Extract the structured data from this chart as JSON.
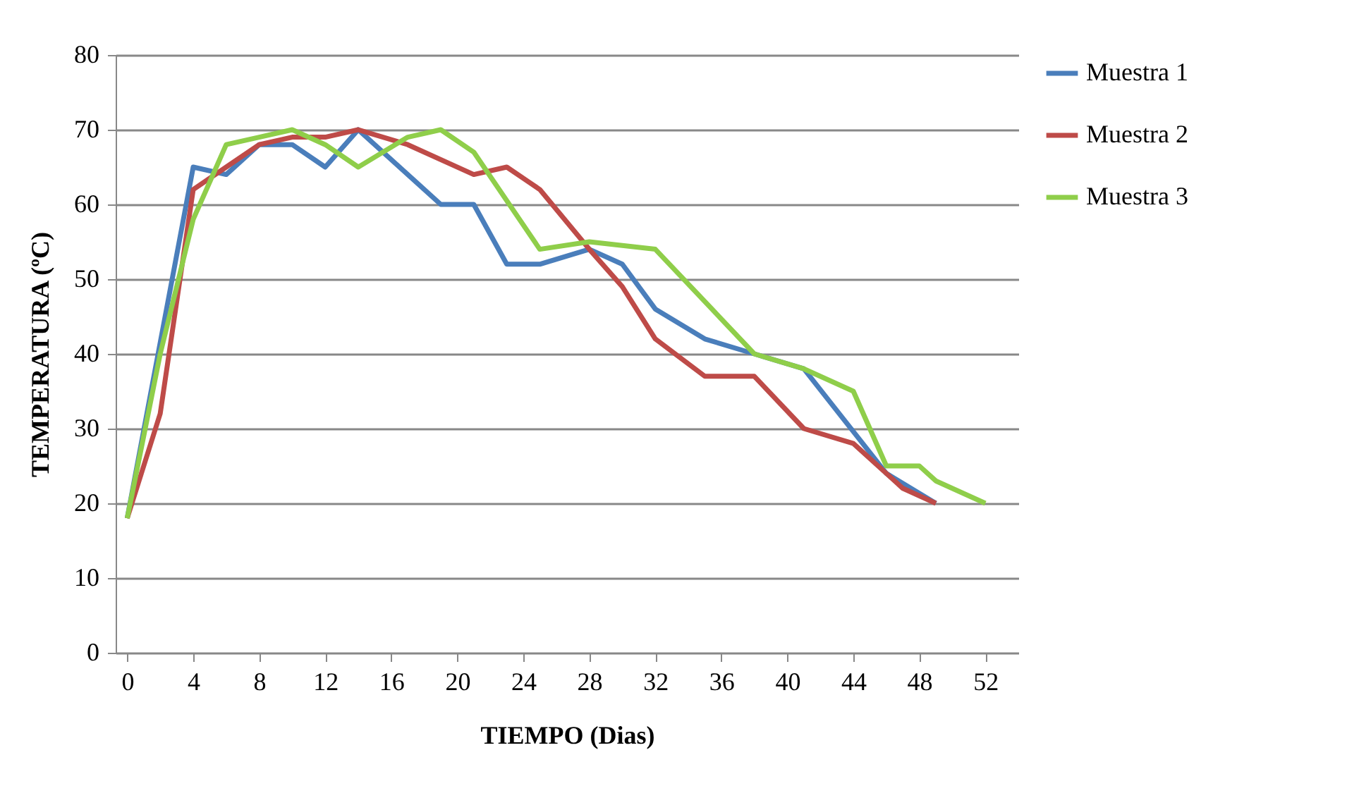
{
  "chart_data": {
    "type": "line",
    "xlabel": "TIEMPO (Dias)",
    "ylabel": "TEMPERATURA (ºC)",
    "xlim": [
      -0.7,
      54
    ],
    "xticks": [
      0,
      4,
      8,
      12,
      16,
      20,
      24,
      28,
      32,
      36,
      40,
      44,
      48,
      52
    ],
    "ylim": [
      0,
      80
    ],
    "yticks": [
      0,
      10,
      20,
      30,
      40,
      50,
      60,
      70,
      80
    ],
    "grid": "y",
    "legend": "right",
    "marker": "none",
    "line_style": "solid",
    "series": [
      {
        "name": "Muestra 1",
        "color": "#4a7ebb",
        "x": [
          0,
          4,
          6,
          8,
          10,
          12,
          14,
          19,
          21,
          23,
          25,
          28,
          30,
          32,
          35,
          38,
          41,
          46,
          49
        ],
        "values": [
          18,
          65,
          64,
          68,
          68,
          65,
          70,
          60,
          60,
          52,
          52,
          54,
          52,
          46,
          42,
          40,
          38,
          24,
          20
        ]
      },
      {
        "name": "Muestra 2",
        "color": "#be4b48",
        "x": [
          0,
          2,
          4,
          6,
          8,
          10,
          12,
          14,
          17,
          21,
          23,
          25,
          28,
          30,
          32,
          35,
          38,
          41,
          44,
          47,
          49
        ],
        "values": [
          18,
          32,
          62,
          65,
          68,
          69,
          69,
          70,
          68,
          64,
          65,
          62,
          54,
          49,
          42,
          37,
          37,
          30,
          28,
          22,
          20
        ]
      },
      {
        "name": "Muestra 3",
        "color": "#8fce4a",
        "x": [
          0,
          2,
          4,
          6,
          8,
          10,
          12,
          14,
          17,
          19,
          21,
          25,
          28,
          32,
          38,
          41,
          44,
          46,
          48,
          49,
          52
        ],
        "values": [
          18,
          40,
          58,
          68,
          69,
          70,
          68,
          65,
          69,
          70,
          67,
          54,
          55,
          54,
          40,
          38,
          35,
          25,
          25,
          23,
          20
        ]
      }
    ]
  }
}
